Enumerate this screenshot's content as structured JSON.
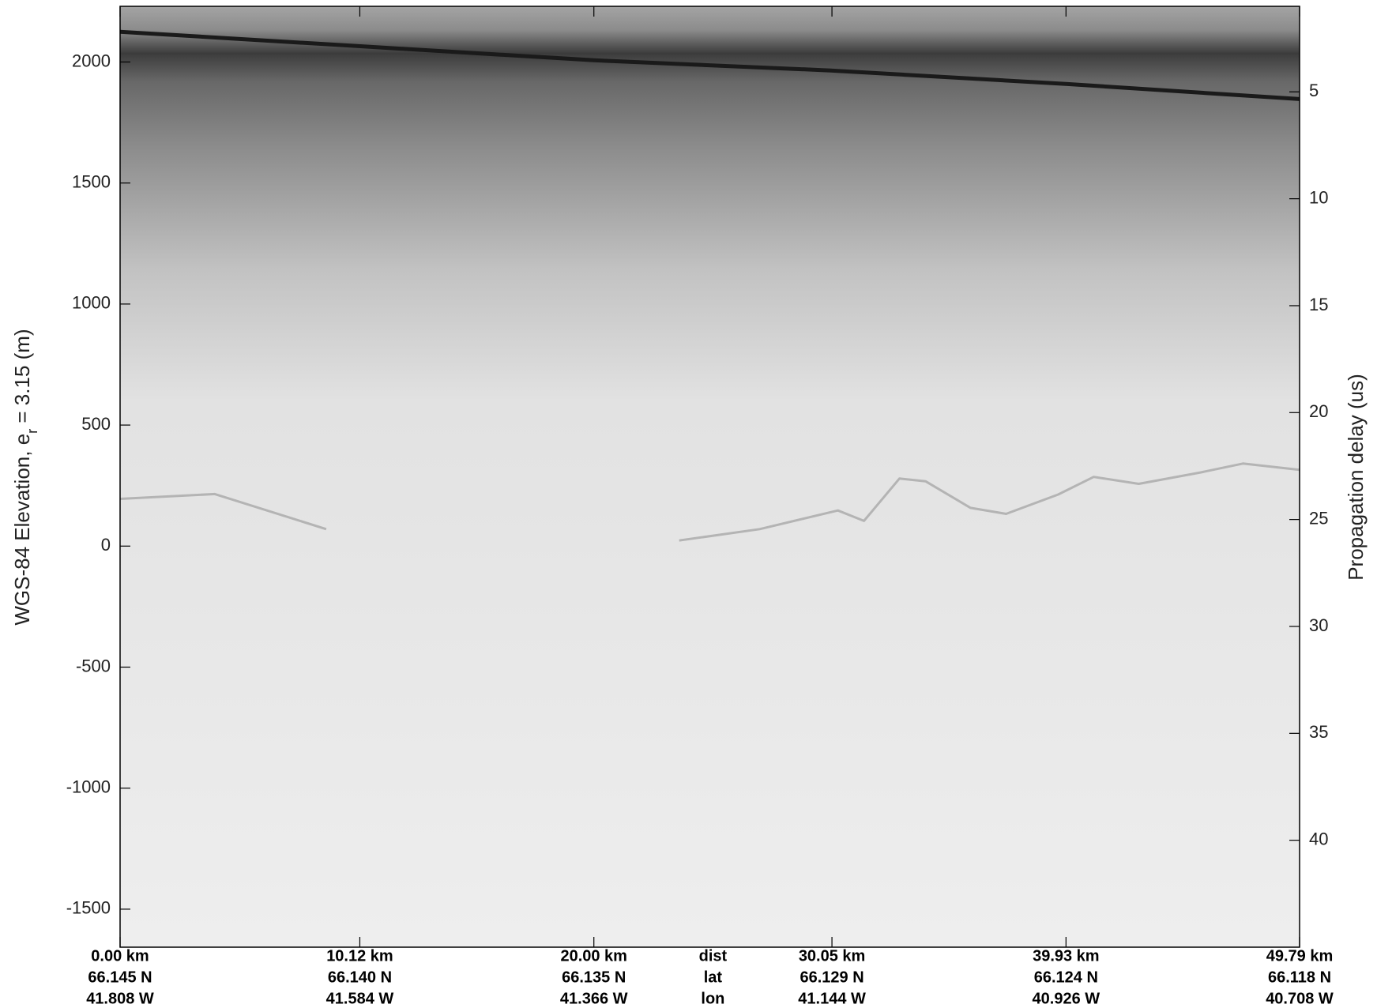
{
  "chart_data": {
    "type": "line",
    "ylabel": {
      "main": "WGS-84 Elevation, e",
      "sub": "r",
      "tail": " = 3.15 (m)"
    },
    "y2label": "Propagation delay (us)",
    "xlim": [
      0,
      49.79
    ],
    "xticks": [
      {
        "value": 0,
        "label": "0.00 km"
      },
      {
        "value": 10.12,
        "label": "10.12 km"
      },
      {
        "value": 20.0,
        "label": "20.00 km"
      },
      {
        "value": 30.05,
        "label": "30.05 km"
      },
      {
        "value": 39.93,
        "label": "39.93 km"
      },
      {
        "value": 49.79,
        "label": "49.79 km"
      }
    ],
    "lat_labels": [
      "66.145 N",
      "66.140 N",
      "66.135 N",
      "66.129 N",
      "66.124 N",
      "66.118 N"
    ],
    "lon_labels": [
      "41.808 W",
      "41.584 W",
      "41.366 W",
      "41.144 W",
      "40.926 W",
      "40.708 W"
    ],
    "x_row_labels": [
      "dist",
      "lat",
      "lon"
    ],
    "ylim": [
      -1657,
      2230
    ],
    "yticks": [
      2000,
      1500,
      1000,
      500,
      0,
      -500,
      -1000,
      -1500
    ],
    "y2lim": [
      45,
      1
    ],
    "y2ticks": [
      5,
      10,
      15,
      20,
      25,
      30,
      35,
      40
    ],
    "series": [
      {
        "color": "#1a1a1a",
        "x": [
          0,
          10,
          20,
          30,
          40,
          49.79
        ],
        "values": [
          2125,
          2066,
          2007,
          1965,
          1909,
          1847
        ]
      },
      {
        "color": "#b4b4b4",
        "x": [
          0,
          4,
          8.7,
          15,
          23.6,
          27,
          30.3,
          31.4,
          32.9,
          34.0,
          35.9,
          37.4,
          39.6,
          41.1,
          43.0,
          45.6,
          47.4,
          49.79
        ],
        "values": [
          195,
          215,
          70,
          null,
          23,
          70,
          147,
          104,
          279,
          268,
          158,
          133,
          213,
          286,
          257,
          304,
          341,
          315
        ]
      }
    ]
  }
}
